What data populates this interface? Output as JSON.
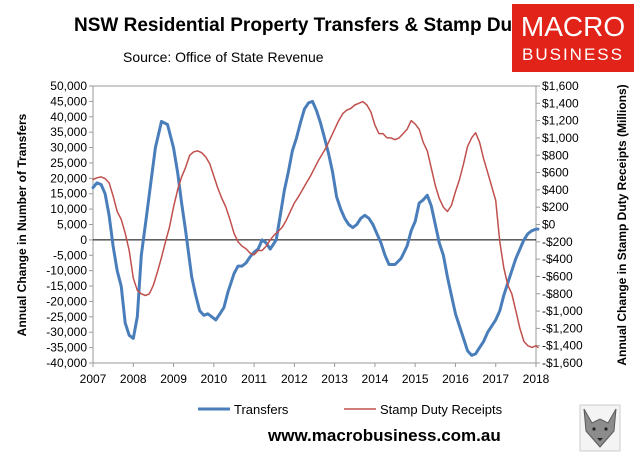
{
  "brand": {
    "logo_line1": "MACRO",
    "logo_line2": "BUSINESS",
    "logo_color": "#e2231a",
    "url": "www.macrobusiness.com.au"
  },
  "chart_data": {
    "type": "line",
    "title": "NSW Residential Property Transfers & Stamp Duty",
    "subtitle": "Source: Office of State Revenue",
    "ylabel_left": "Annual Change in Number of Transfers",
    "ylabel_right": "Annual Change in Stamp Duty Receipts (Millions)",
    "xlim": [
      2007,
      2018
    ],
    "ylim_left": [
      -40000,
      50000
    ],
    "ylim_right": [
      -1600,
      1600
    ],
    "x_ticks": [
      "2007",
      "2008",
      "2009",
      "2010",
      "2011",
      "2012",
      "2013",
      "2014",
      "2015",
      "2016",
      "2017",
      "2018"
    ],
    "y_ticks_left": [
      "50,000",
      "45,000",
      "40,000",
      "35,000",
      "30,000",
      "25,000",
      "20,000",
      "15,000",
      "10,000",
      "5,000",
      "0",
      "-5,000",
      "-10,000",
      "-15,000",
      "-20,000",
      "-25,000",
      "-30,000",
      "-35,000",
      "-40,000"
    ],
    "y_ticks_right": [
      "$1,600",
      "$1,400",
      "$1,200",
      "$1,000",
      "$800",
      "$600",
      "$400",
      "$200",
      "$0",
      "-$200",
      "-$400",
      "-$600",
      "-$800",
      "-$1,000",
      "-$1,200",
      "-$1,400",
      "-$1,600"
    ],
    "legend_position": "bottom",
    "series": [
      {
        "name": "Transfers",
        "axis": "left",
        "color": "#4a7ebb",
        "x": [
          2007.0,
          2007.1,
          2007.2,
          2007.3,
          2007.4,
          2007.5,
          2007.6,
          2007.7,
          2007.8,
          2007.9,
          2008.0,
          2008.1,
          2008.2,
          2008.3,
          2008.45,
          2008.55,
          2008.7,
          2008.85,
          2009.0,
          2009.1,
          2009.2,
          2009.3,
          2009.45,
          2009.55,
          2009.65,
          2009.75,
          2009.85,
          2009.95,
          2010.05,
          2010.15,
          2010.25,
          2010.35,
          2010.5,
          2010.6,
          2010.7,
          2010.8,
          2010.9,
          2011.0,
          2011.1,
          2011.2,
          2011.3,
          2011.4,
          2011.55,
          2011.65,
          2011.75,
          2011.85,
          2011.95,
          2012.05,
          2012.15,
          2012.25,
          2012.35,
          2012.45,
          2012.55,
          2012.65,
          2012.75,
          2012.85,
          2012.95,
          2013.05,
          2013.15,
          2013.25,
          2013.35,
          2013.45,
          2013.55,
          2013.65,
          2013.75,
          2013.85,
          2013.95,
          2014.05,
          2014.15,
          2014.25,
          2014.35,
          2014.5,
          2014.65,
          2014.8,
          2014.9,
          2015.0,
          2015.1,
          2015.2,
          2015.3,
          2015.4,
          2015.5,
          2015.6,
          2015.7,
          2015.8,
          2015.9,
          2016.0,
          2016.1,
          2016.2,
          2016.3,
          2016.4,
          2016.5,
          2016.6,
          2016.7,
          2016.8,
          2016.9,
          2017.0,
          2017.1,
          2017.2,
          2017.3,
          2017.4,
          2017.5,
          2017.6,
          2017.7,
          2017.8,
          2017.9,
          2018.0,
          2018.05
        ],
        "values": [
          17000,
          18500,
          18000,
          15000,
          8000,
          -2000,
          -10000,
          -15000,
          -27000,
          -31000,
          -32000,
          -25000,
          -5000,
          5000,
          20000,
          30000,
          38500,
          37500,
          30000,
          22000,
          12000,
          3000,
          -12000,
          -18000,
          -23000,
          -24500,
          -24000,
          -25000,
          -26000,
          -24000,
          -22000,
          -17000,
          -11000,
          -8500,
          -8500,
          -7500,
          -5500,
          -4000,
          -3000,
          0,
          -1000,
          -3000,
          0,
          8000,
          16000,
          22000,
          29000,
          33000,
          38000,
          42500,
          44500,
          45000,
          42000,
          38000,
          33000,
          28000,
          22000,
          14000,
          10000,
          7000,
          5000,
          4000,
          5000,
          7000,
          8000,
          7000,
          5000,
          2000,
          -1000,
          -5000,
          -8000,
          -8000,
          -6000,
          -2000,
          3000,
          6000,
          12000,
          13000,
          14500,
          11000,
          5000,
          -1000,
          -5000,
          -12000,
          -18000,
          -24000,
          -28000,
          -32000,
          -36000,
          -37500,
          -37000,
          -35000,
          -33000,
          -30000,
          -28000,
          -26000,
          -23000,
          -18000,
          -14000,
          -10000,
          -6000,
          -3000,
          0,
          2000,
          3000,
          3500,
          3500
        ]
      },
      {
        "name": "Stamp Duty Receipts",
        "axis": "right",
        "color": "#c0504d",
        "x": [
          2007.0,
          2007.1,
          2007.2,
          2007.3,
          2007.4,
          2007.5,
          2007.6,
          2007.7,
          2007.8,
          2007.9,
          2008.0,
          2008.1,
          2008.2,
          2008.3,
          2008.4,
          2008.5,
          2008.6,
          2008.7,
          2008.8,
          2008.9,
          2009.0,
          2009.1,
          2009.2,
          2009.3,
          2009.4,
          2009.5,
          2009.6,
          2009.7,
          2009.8,
          2009.9,
          2010.0,
          2010.1,
          2010.2,
          2010.3,
          2010.4,
          2010.5,
          2010.6,
          2010.7,
          2010.8,
          2010.9,
          2011.0,
          2011.1,
          2011.2,
          2011.3,
          2011.4,
          2011.5,
          2011.6,
          2011.7,
          2011.8,
          2011.9,
          2012.0,
          2012.1,
          2012.2,
          2012.3,
          2012.4,
          2012.5,
          2012.6,
          2012.7,
          2012.8,
          2012.9,
          2013.0,
          2013.1,
          2013.2,
          2013.3,
          2013.4,
          2013.5,
          2013.6,
          2013.7,
          2013.8,
          2013.9,
          2014.0,
          2014.1,
          2014.2,
          2014.3,
          2014.4,
          2014.5,
          2014.6,
          2014.7,
          2014.8,
          2014.9,
          2015.0,
          2015.1,
          2015.2,
          2015.3,
          2015.4,
          2015.5,
          2015.6,
          2015.7,
          2015.8,
          2015.9,
          2016.0,
          2016.1,
          2016.2,
          2016.3,
          2016.4,
          2016.5,
          2016.6,
          2016.7,
          2016.8,
          2016.9,
          2017.0,
          2017.1,
          2017.2,
          2017.3,
          2017.4,
          2017.5,
          2017.6,
          2017.7,
          2017.8,
          2017.9,
          2018.0,
          2018.05
        ],
        "values": [
          520,
          540,
          550,
          530,
          480,
          330,
          150,
          60,
          -100,
          -300,
          -620,
          -760,
          -800,
          -820,
          -800,
          -700,
          -550,
          -380,
          -200,
          -30,
          200,
          400,
          550,
          660,
          800,
          840,
          850,
          830,
          780,
          700,
          560,
          420,
          300,
          200,
          60,
          -100,
          -200,
          -250,
          -280,
          -330,
          -350,
          -300,
          -300,
          -250,
          -180,
          -120,
          -80,
          -30,
          50,
          150,
          250,
          320,
          400,
          480,
          560,
          650,
          740,
          820,
          900,
          1000,
          1100,
          1200,
          1280,
          1320,
          1340,
          1380,
          1400,
          1420,
          1380,
          1300,
          1150,
          1050,
          1050,
          1000,
          1000,
          980,
          1000,
          1050,
          1100,
          1200,
          1160,
          1100,
          950,
          850,
          650,
          450,
          300,
          200,
          150,
          220,
          380,
          520,
          700,
          900,
          1000,
          1060,
          950,
          760,
          600,
          440,
          280,
          -200,
          -500,
          -700,
          -800,
          -1000,
          -1200,
          -1350,
          -1400,
          -1420,
          -1400,
          -1420
        ]
      }
    ]
  }
}
